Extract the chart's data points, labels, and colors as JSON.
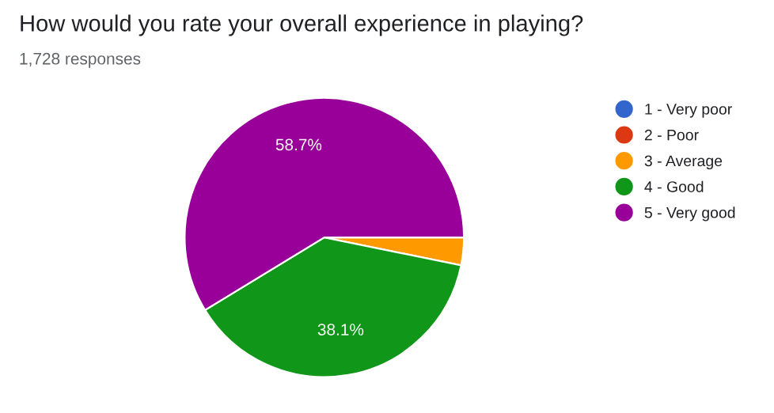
{
  "chart_data": {
    "type": "pie",
    "title": "How would you rate your overall experience in playing?",
    "subtitle": "1,728 responses",
    "categories": [
      "1 - Very poor",
      "2 - Poor",
      "3 - Average",
      "4 - Good",
      "5 - Very good"
    ],
    "values": [
      0,
      0,
      3.2,
      38.1,
      58.7
    ],
    "colors": [
      "#3366cc",
      "#dc3912",
      "#ff9900",
      "#109618",
      "#990099"
    ],
    "value_labels": [
      null,
      null,
      null,
      "38.1%",
      "58.7%"
    ],
    "legend": "right"
  }
}
